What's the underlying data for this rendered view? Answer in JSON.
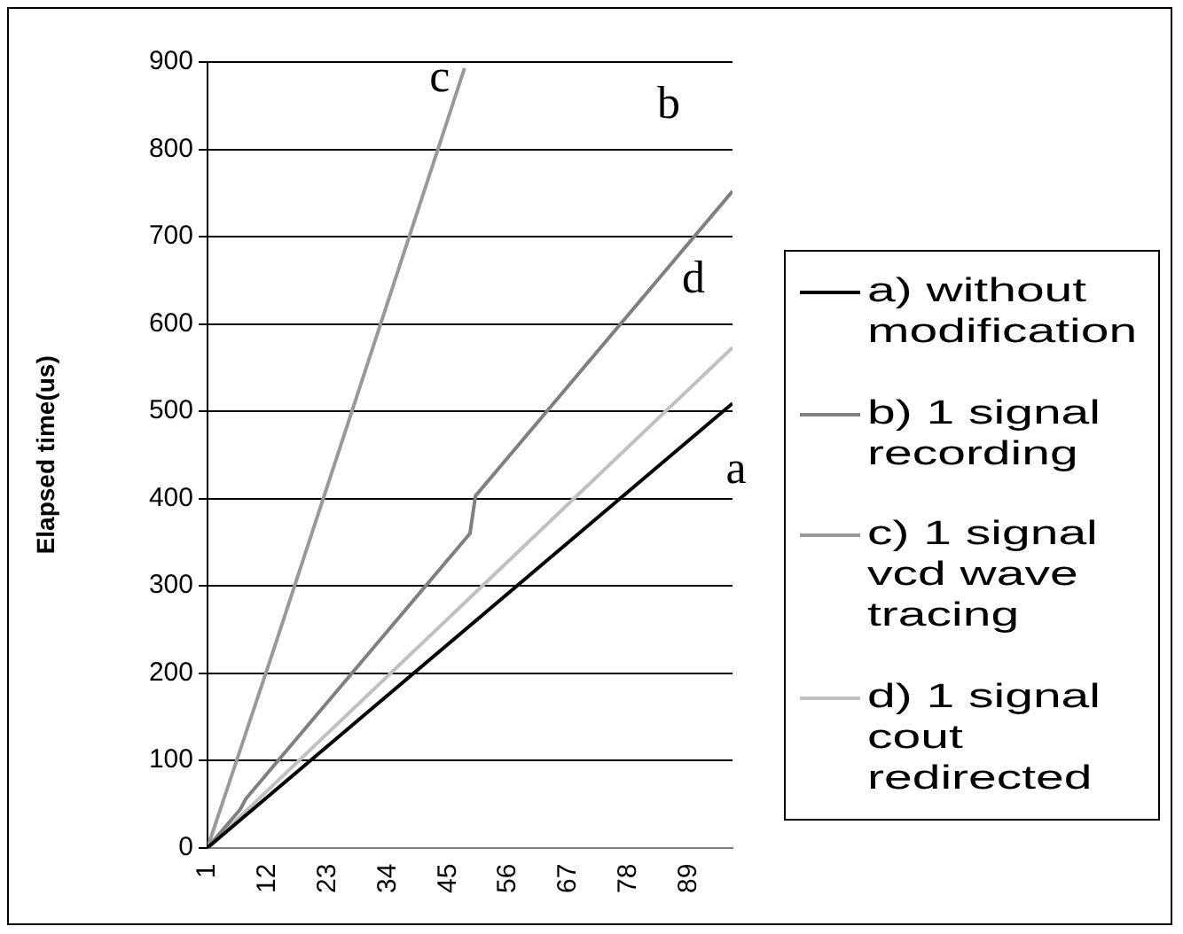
{
  "chart_data": {
    "type": "line",
    "ylabel": "Elapsed time(us)",
    "xlim": [
      1,
      97
    ],
    "xticks": [
      1,
      12,
      23,
      34,
      45,
      56,
      67,
      78,
      89
    ],
    "ylim": [
      0,
      900
    ],
    "yticks": [
      0,
      100,
      200,
      300,
      400,
      500,
      600,
      700,
      800,
      900
    ],
    "grid": "y",
    "legend": "right",
    "marker": "none",
    "line_style": "solid",
    "series": [
      {
        "name": "a) without modification",
        "color": "#000000",
        "x": [
          1,
          97
        ],
        "values": [
          0,
          509
        ]
      },
      {
        "name": "b) 1 signal recording",
        "color": "#808080",
        "x": [
          1,
          7,
          8,
          49,
          50,
          97
        ],
        "values": [
          0,
          44,
          56,
          360,
          403,
          752
        ]
      },
      {
        "name": "c) 1 signal vcd wave tracing",
        "color": "#999999",
        "x": [
          1,
          13,
          48
        ],
        "values": [
          0,
          225,
          893
        ]
      },
      {
        "name": "d) 1 signal cout redirected",
        "color": "#c0c0c0",
        "x": [
          1,
          97
        ],
        "values": [
          0,
          573
        ]
      }
    ],
    "annotations": [
      "a",
      "b",
      "c",
      "d"
    ]
  }
}
